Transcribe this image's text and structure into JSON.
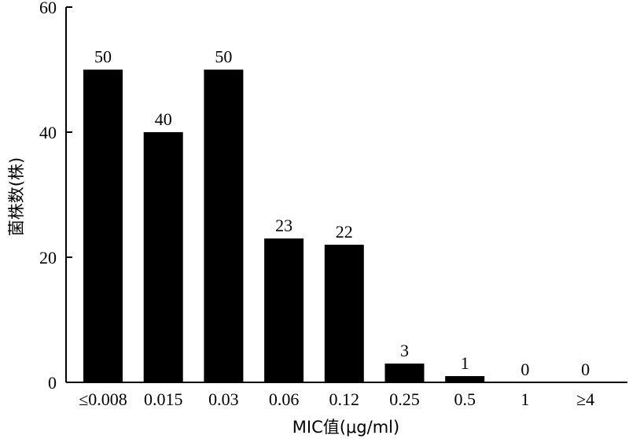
{
  "chart_data": {
    "type": "bar",
    "categories": [
      "≤0.008",
      "0.015",
      "0.03",
      "0.06",
      "0.12",
      "0.25",
      "0.5",
      "1",
      "≥4"
    ],
    "values": [
      50,
      40,
      50,
      23,
      22,
      3,
      1,
      0,
      0
    ],
    "data_labels": [
      "50",
      "40",
      "50",
      "23",
      "22",
      "3",
      "1",
      "0",
      "0"
    ],
    "title": "",
    "xlabel": "MIC值(μg/ml)",
    "ylabel": "菌株数(株)",
    "ylim": [
      0,
      60
    ],
    "yticks": [
      0,
      20,
      40,
      60
    ],
    "ytick_labels": [
      "0",
      "20",
      "40",
      "60"
    ],
    "grid": false,
    "legend": "none",
    "bar_color": "#000000"
  }
}
